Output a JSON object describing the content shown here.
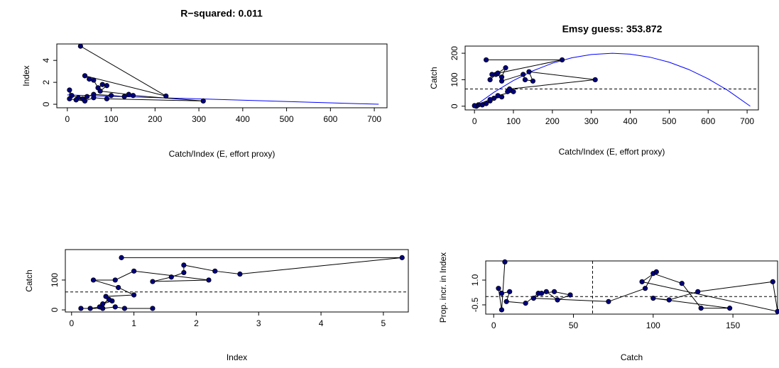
{
  "chart_data": [
    {
      "type": "line",
      "title": "R−squared: 0.011",
      "x_label": "Catch/Index (E, effort proxy)",
      "y_label": "Index",
      "x": [
        30,
        225,
        40,
        50,
        60,
        70,
        80,
        90,
        75,
        140,
        130,
        100,
        60,
        45,
        35,
        25,
        10,
        5,
        5,
        20,
        40,
        60,
        90,
        310,
        150
      ],
      "y": [
        5.3,
        0.75,
        2.6,
        2.3,
        2.2,
        1.5,
        1.8,
        1.7,
        1.2,
        0.9,
        0.7,
        0.8,
        0.9,
        0.7,
        0.5,
        0.6,
        0.8,
        1.3,
        0.5,
        0.4,
        0.3,
        0.6,
        0.5,
        0.3,
        0.8
      ],
      "color": "#000080",
      "fit": {
        "x": [
          0,
          710
        ],
        "y": [
          0.85,
          0
        ],
        "color": "#0000ff"
      },
      "xlim": [
        -24,
        729
      ],
      "ylim": [
        -0.32,
        5.5
      ],
      "xticks": [
        0,
        100,
        200,
        300,
        400,
        500,
        600,
        700
      ],
      "yticks": [
        0,
        2,
        4
      ]
    },
    {
      "type": "line",
      "title": "Emsy guess: 353.872",
      "x_label": "Catch/Index (E, effort proxy)",
      "y_label": "Catch",
      "x": [
        30,
        225,
        45,
        40,
        55,
        70,
        80,
        60,
        70,
        125,
        130,
        150,
        140,
        310,
        90,
        85,
        100,
        60,
        50,
        40,
        30,
        20,
        10,
        5,
        0,
        40,
        70
      ],
      "y": [
        175,
        175,
        120,
        100,
        120,
        110,
        145,
        125,
        95,
        120,
        100,
        95,
        130,
        100,
        65,
        55,
        55,
        40,
        30,
        20,
        10,
        5,
        5,
        0,
        2,
        25,
        35
      ],
      "color": "#000080",
      "fit": {
        "x": [
          0,
          50,
          100,
          150,
          200,
          250,
          300,
          354,
          400,
          450,
          500,
          550,
          600,
          650,
          708
        ],
        "y": [
          0,
          52.5,
          97,
          133.6,
          162.2,
          182.7,
          195.3,
          200,
          196.6,
          185.3,
          166,
          138.7,
          103.4,
          60.2,
          0
        ],
        "color": "#0000ff"
      },
      "hline": 65,
      "xlim": [
        -24,
        729
      ],
      "ylim": [
        -14,
        227
      ],
      "xticks": [
        0,
        100,
        200,
        300,
        400,
        500,
        600,
        700
      ],
      "yticks": [
        0,
        100,
        200
      ]
    },
    {
      "type": "line",
      "x_label": "Index",
      "y_label": "Catch",
      "x": [
        0.8,
        5.3,
        2.7,
        2.3,
        1.8,
        1.8,
        1.6,
        1.3,
        2.2,
        1.0,
        0.7,
        0.35,
        0.75,
        1.0,
        0.55,
        0.65,
        0.5,
        0.6,
        0.45,
        0.3,
        0.15,
        0.5,
        0.7,
        0.85,
        1.3
      ],
      "y": [
        175,
        175,
        120,
        130,
        150,
        125,
        110,
        95,
        100,
        130,
        100,
        100,
        75,
        50,
        45,
        30,
        20,
        35,
        10,
        5,
        5,
        5,
        10,
        5,
        5
      ],
      "color": "#000080",
      "hline": 60,
      "xlim": [
        -0.1,
        5.4
      ],
      "ylim": [
        -7,
        202
      ],
      "xticks": [
        0,
        1,
        2,
        3,
        4,
        5
      ],
      "yticks": [
        0,
        100
      ]
    },
    {
      "type": "line",
      "x_label": "Catch",
      "y_label": "Prop. incr. in Index",
      "x": [
        7,
        5,
        3,
        5,
        10,
        8,
        20,
        28,
        33,
        40,
        48,
        38,
        30,
        25,
        72,
        95,
        100,
        118,
        130,
        148,
        100,
        110,
        128,
        175,
        178,
        93,
        102
      ],
      "y": [
        2.1,
        -0.8,
        0.5,
        0.2,
        0.3,
        -0.3,
        -0.4,
        0.2,
        0.3,
        -0.2,
        0.1,
        0.3,
        0.2,
        -0.1,
        -0.3,
        0.5,
        1.4,
        0.8,
        -0.7,
        -0.7,
        -0.1,
        -0.2,
        0.3,
        0.9,
        -0.9,
        0.9,
        1.5
      ],
      "color": "#000080",
      "hline": 0,
      "vline": 62,
      "xlim": [
        -5,
        178
      ],
      "ylim": [
        -1.06,
        2.16
      ],
      "xticks": [
        0,
        50,
        100,
        150
      ],
      "yticks": [
        -0.5,
        {
          "value": 1,
          "label": "1.0"
        }
      ]
    }
  ]
}
